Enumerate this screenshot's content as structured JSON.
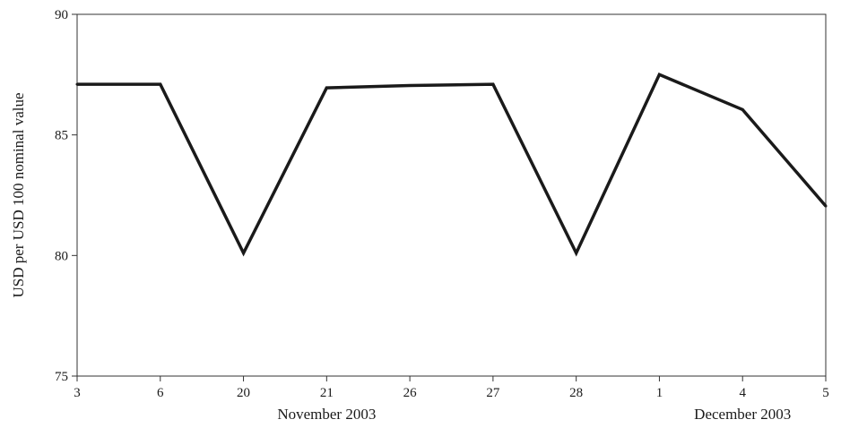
{
  "chart_data": {
    "type": "line",
    "title": "",
    "xlabel": "",
    "ylabel": "USD per USD 100 nominal value",
    "categories": [
      "3",
      "6",
      "20",
      "21",
      "26",
      "27",
      "28",
      "1",
      "4",
      "5"
    ],
    "category_groups": [
      {
        "label": "November 2003",
        "categories": [
          "3",
          "6",
          "20",
          "21",
          "26",
          "27",
          "28"
        ]
      },
      {
        "label": "December 2003",
        "categories": [
          "1",
          "4",
          "5"
        ]
      }
    ],
    "series": [
      {
        "values": [
          87.1,
          87.1,
          80.1,
          86.95,
          87.05,
          87.1,
          80.1,
          87.5,
          86.05,
          82.05
        ]
      }
    ],
    "ylim": [
      75,
      90
    ],
    "yticks": [
      75,
      80,
      85,
      90
    ],
    "grid": false,
    "legend": "none",
    "colors": {
      "line": "#1a1a1a",
      "axis": "#333333"
    }
  }
}
